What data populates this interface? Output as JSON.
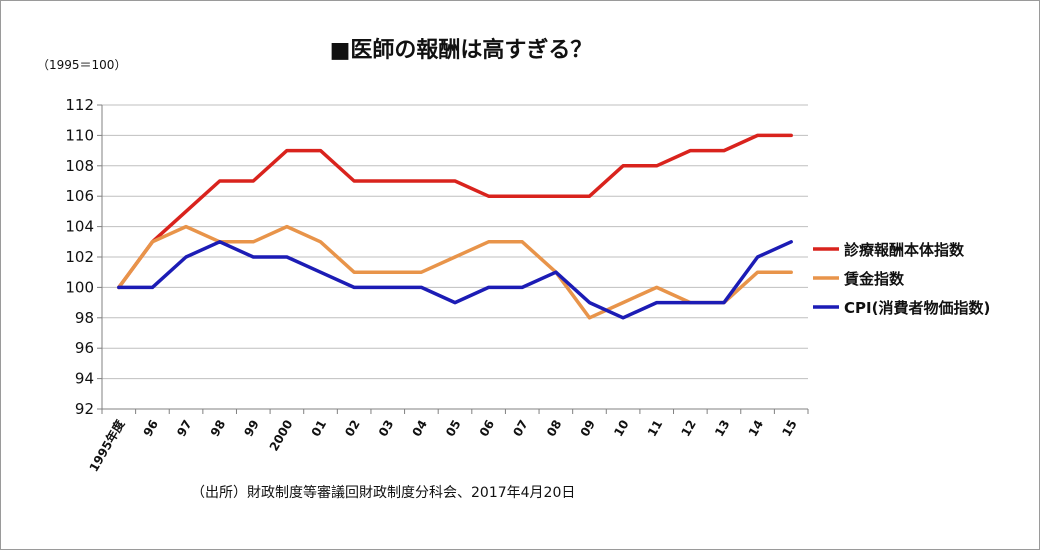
{
  "chart_data": {
    "type": "line",
    "title": "■医師の報酬は高すぎる？",
    "unit_label": "（1995＝100）",
    "source": "（出所）財政制度等審議回財政制度分科会、2017年4月20日",
    "categories": [
      "1995年度",
      "96",
      "97",
      "98",
      "99",
      "2000",
      "01",
      "02",
      "03",
      "04",
      "05",
      "06",
      "07",
      "08",
      "09",
      "10",
      "11",
      "12",
      "13",
      "14",
      "15"
    ],
    "ylim": [
      92,
      112
    ],
    "yticks": [
      92,
      94,
      96,
      98,
      100,
      102,
      104,
      106,
      108,
      110,
      112
    ],
    "grid": true,
    "legend_position": "right",
    "series": [
      {
        "name": "診療報酬本体指数",
        "color": "#d9231d",
        "values": [
          100,
          103,
          105,
          107,
          107,
          109,
          109,
          107,
          107,
          107,
          107,
          106,
          106,
          106,
          106,
          108,
          108,
          109,
          109,
          110,
          110
        ]
      },
      {
        "name": "賃金指数",
        "color": "#e8944a",
        "values": [
          100,
          103,
          104,
          103,
          103,
          104,
          103,
          101,
          101,
          101,
          102,
          103,
          103,
          101,
          98,
          99,
          100,
          99,
          99,
          101,
          101
        ]
      },
      {
        "name": "CPI(消費者物価指数)",
        "color": "#1c1cb5",
        "values": [
          100,
          100,
          102,
          103,
          102,
          102,
          101,
          100,
          100,
          100,
          99,
          100,
          100,
          101,
          99,
          98,
          99,
          99,
          99,
          102,
          103
        ]
      }
    ]
  }
}
